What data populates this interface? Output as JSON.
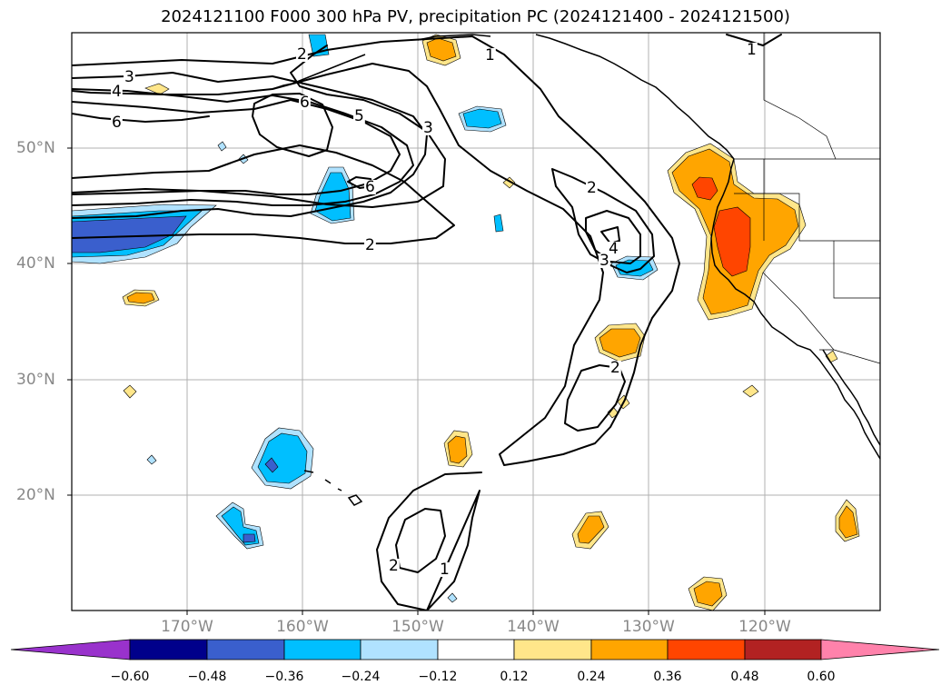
{
  "title": "2024121100 F000 300 hPa PV, precipitation PC (2024121400 - 2024121500)",
  "lat_labels": [
    "50°N",
    "40°N",
    "30°N",
    "20°N"
  ],
  "lon_labels": [
    "170°W",
    "160°W",
    "150°W",
    "140°W",
    "130°W",
    "120°W"
  ],
  "contour_labels": [
    "3",
    "4",
    "6",
    "2",
    "6",
    "5",
    "3",
    "6",
    "2",
    "1",
    "1",
    "2",
    "4",
    "3",
    "2",
    "2",
    "1"
  ],
  "colorbar": {
    "ticks": [
      "−0.60",
      "−0.48",
      "−0.36",
      "−0.24",
      "−0.12",
      "0.12",
      "0.24",
      "0.36",
      "0.48",
      "0.60"
    ],
    "colors": [
      "#9932cc",
      "#00008b",
      "#3a5fcd",
      "#00bfff",
      "#b0e2ff",
      "#ffffff",
      "#ffe68a",
      "#ffa500",
      "#ff4500",
      "#b22222",
      "#ff82ab"
    ]
  },
  "map_colors": {
    "blue_dark": "#3a5fcd",
    "blue_mid": "#00bfff",
    "blue_light": "#b0e2ff",
    "yellow": "#ffe68a",
    "orange": "#ffa500",
    "red": "#ff4500"
  }
}
